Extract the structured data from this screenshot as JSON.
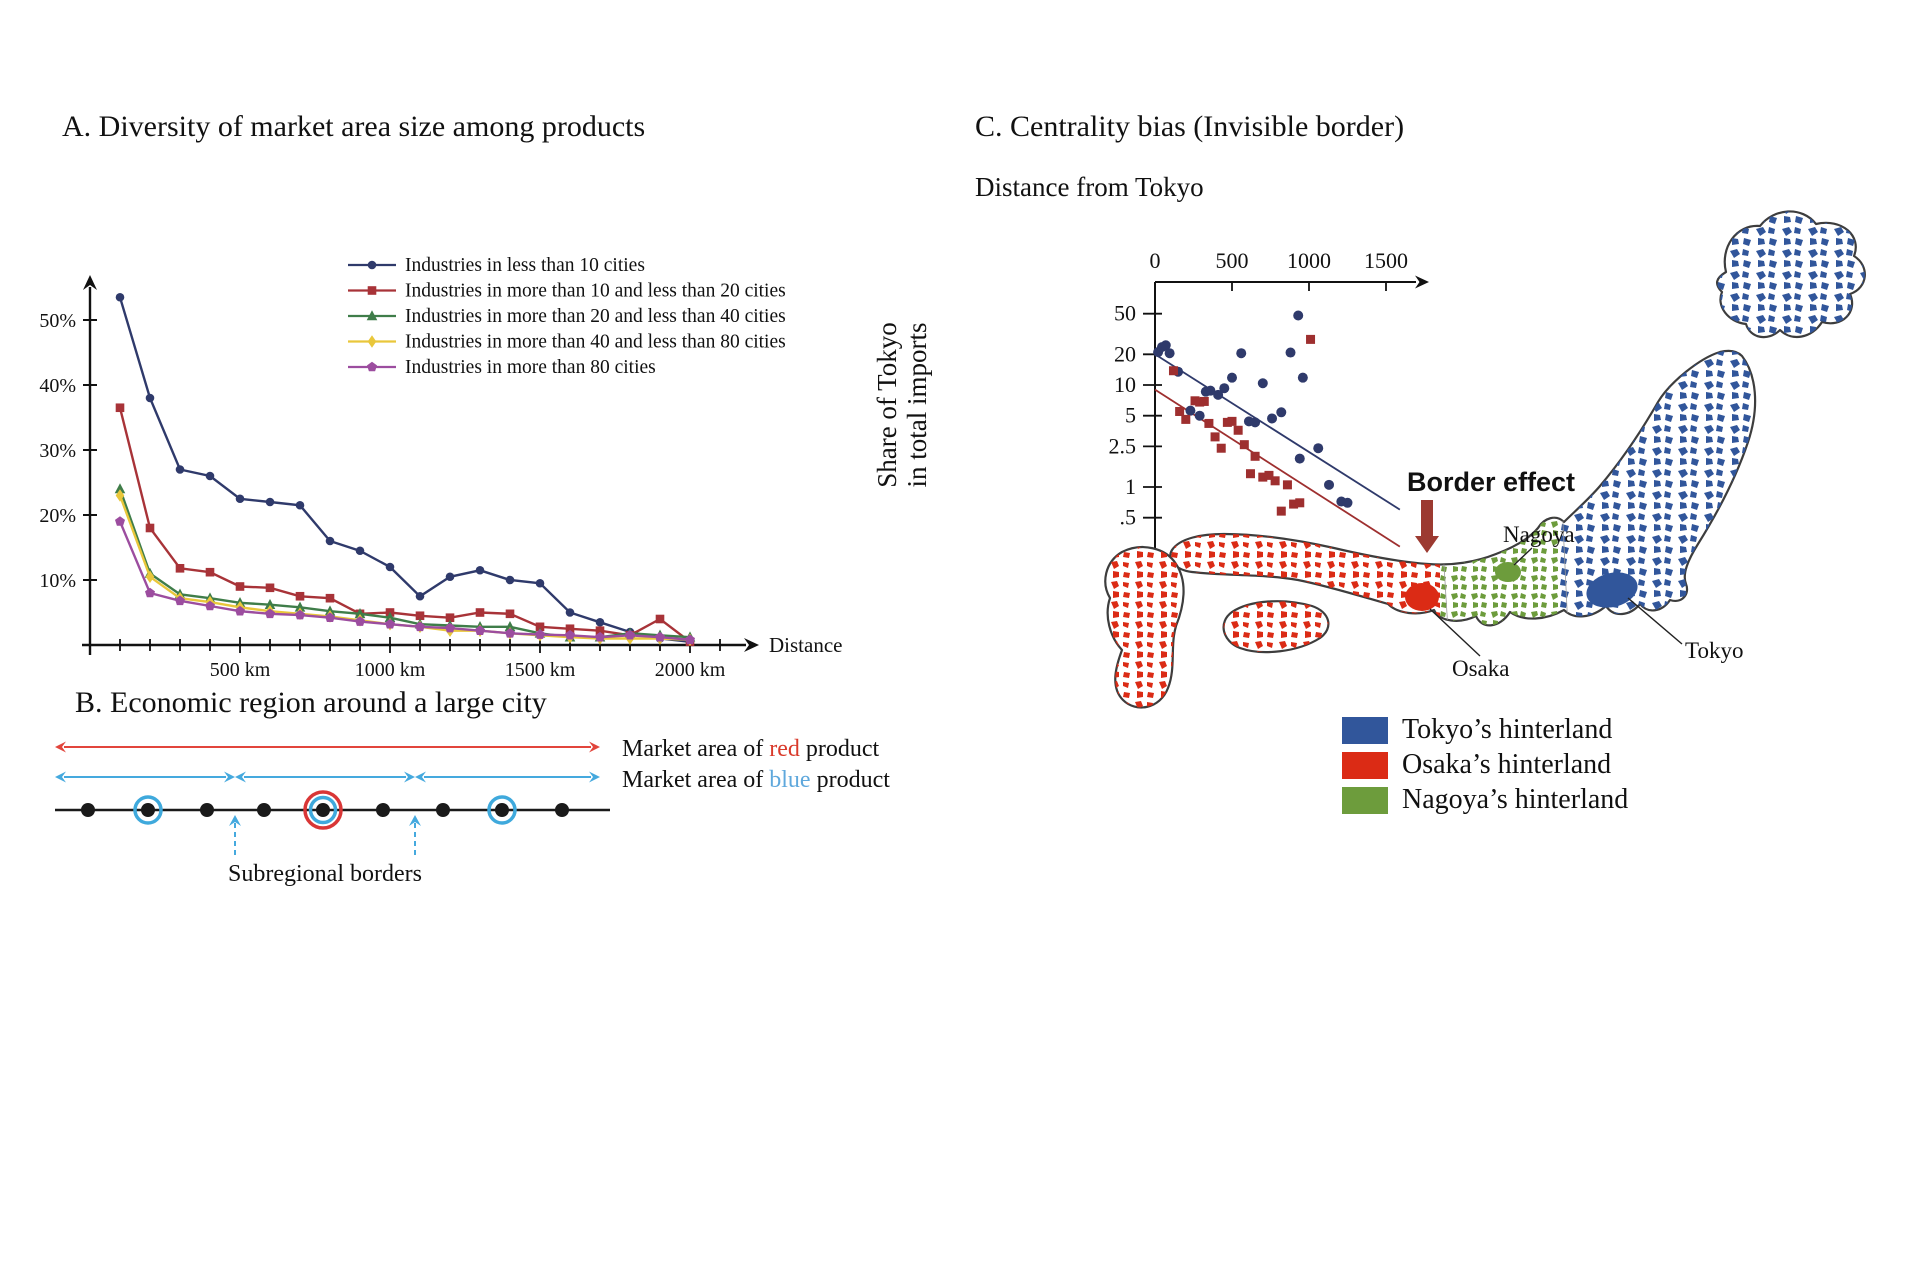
{
  "panels": {
    "a": {
      "title": "A. Diversity of market area size among products"
    },
    "b": {
      "title": "B. Economic region around a large city",
      "market_red": {
        "prefix": "Market area of ",
        "word": "red",
        "suffix": " product",
        "word_color": "#D93A2B"
      },
      "market_blue": {
        "prefix": "Market area of ",
        "word": "blue",
        "suffix": " product",
        "word_color": "#5FA8DC"
      },
      "borders_label": "Subregional borders",
      "diagram": {
        "arrow_red_color": "#E2453C",
        "arrow_blue_color": "#45A9DE",
        "ring_blue_color": "#3FA9DC",
        "ring_red_color": "#D93636",
        "span": [
          15,
          560
        ],
        "blue_breaks": [
          15,
          195,
          375,
          560
        ],
        "city_positions": [
          48,
          108,
          167,
          224,
          283,
          343,
          403,
          462,
          522
        ],
        "blue_ring_cities": [
          1,
          7
        ],
        "center_city": 4,
        "border_positions": [
          195,
          375
        ]
      }
    },
    "c": {
      "title": "C. Centrality bias (Invisible border)",
      "y_axis_label_lines": [
        "Share of Tokyo",
        "in total imports"
      ],
      "border_effect_label": "Border effect",
      "border_effect_color": "#9C3A31",
      "city_labels": {
        "tokyo": "Tokyo",
        "osaka": "Osaka",
        "nagoya": "Nagoya"
      },
      "map_legend": [
        {
          "label": "Tokyo’s hinterland",
          "color": "#31569B"
        },
        {
          "label": "Osaka’s hinterland",
          "color": "#DB2B15"
        },
        {
          "label": "Nagoya’s hinterland",
          "color": "#6D9C3C"
        }
      ]
    }
  },
  "chart_data": [
    {
      "type": "line",
      "title": "A. Diversity of market area size among products",
      "xlabel": "Distance",
      "x_unit": "km",
      "grid": false,
      "legend_position": "upper right",
      "xlim": [
        0,
        2150
      ],
      "ylim": [
        0,
        57
      ],
      "y_ticks": [
        10,
        20,
        30,
        40,
        50
      ],
      "y_tick_labels": [
        "10%",
        "20%",
        "30%",
        "40%",
        "50%"
      ],
      "x_major_ticks": [
        500,
        1000,
        1500,
        2000
      ],
      "x_major_tick_labels": [
        "500 km",
        "1000 km",
        "1500 km",
        "2000 km"
      ],
      "x": [
        100,
        200,
        300,
        400,
        500,
        600,
        700,
        800,
        900,
        1000,
        1100,
        1200,
        1300,
        1400,
        1500,
        1600,
        1700,
        1800,
        1900,
        2000
      ],
      "series": [
        {
          "name": "Industries in less than 10 cities",
          "color": "#2F3A6B",
          "marker": "circle",
          "values": [
            53.5,
            38,
            27,
            26,
            22.5,
            22,
            21.5,
            16,
            14.5,
            12,
            7.5,
            10.5,
            11.5,
            10,
            9.5,
            5,
            3.5,
            2,
            1,
            0.5
          ]
        },
        {
          "name": "Industries in more than 10 and less than 20 cities",
          "color": "#A83338",
          "marker": "square",
          "values": [
            36.5,
            18,
            11.8,
            11.2,
            9,
            8.8,
            7.5,
            7.2,
            4.8,
            5,
            4.5,
            4.2,
            5,
            4.8,
            2.8,
            2.5,
            2.2,
            1.5,
            4,
            0.5
          ]
        },
        {
          "name": "Industries in more than 20 and less than 40 cities",
          "color": "#3F7D49",
          "marker": "triangle",
          "values": [
            24,
            11,
            7.8,
            7.2,
            6.5,
            6.2,
            5.8,
            5.2,
            4.8,
            4.2,
            3.2,
            3,
            2.8,
            2.8,
            1.8,
            1.2,
            1.2,
            1.8,
            1.5,
            1.2
          ]
        },
        {
          "name": "Industries in more than 40 and less than 80 cities",
          "color": "#E9C73B",
          "marker": "diamond",
          "values": [
            23,
            10.5,
            7.2,
            6.6,
            5.8,
            5.2,
            4.8,
            4.4,
            3.8,
            3.2,
            2.8,
            2.2,
            2.2,
            1.8,
            1.5,
            1.2,
            1,
            1,
            1,
            0.8
          ]
        },
        {
          "name": "Industries in more than 80 cities",
          "color": "#9C4D9F",
          "marker": "pentagon",
          "values": [
            19,
            8,
            6.8,
            6,
            5.2,
            4.8,
            4.6,
            4.2,
            3.6,
            3.2,
            2.8,
            2.6,
            2.2,
            1.8,
            1.6,
            1.5,
            1.2,
            1.5,
            1.2,
            0.8
          ]
        }
      ]
    },
    {
      "type": "scatter",
      "title": "C. Centrality bias (Invisible border)",
      "xlabel": "Distance from Tokyo",
      "ylabel": "Share of Tokyo in total imports",
      "y_scale": "log",
      "x_ticks": [
        0,
        500,
        1000,
        1500
      ],
      "y_ticks": [
        50,
        20,
        10,
        5,
        2.5,
        1,
        0.5
      ],
      "y_tick_labels": [
        "50",
        "20",
        "10",
        "5",
        "2.5",
        "1",
        ".5"
      ],
      "series": [
        {
          "name": "blue circles",
          "marker": "circle",
          "color": "#2F3A6B",
          "points": [
            [
              20,
              21
            ],
            [
              45,
              23.5
            ],
            [
              70,
              24.5
            ],
            [
              95,
              20.5
            ],
            [
              150,
              13.5
            ],
            [
              230,
              5.6
            ],
            [
              290,
              5
            ],
            [
              330,
              8.6
            ],
            [
              360,
              8.8
            ],
            [
              410,
              8
            ],
            [
              450,
              9.3
            ],
            [
              500,
              11.8
            ],
            [
              560,
              20.5
            ],
            [
              610,
              4.4
            ],
            [
              650,
              4.3
            ],
            [
              700,
              10.4
            ],
            [
              760,
              4.7
            ],
            [
              820,
              5.4
            ],
            [
              880,
              20.8
            ],
            [
              930,
              48
            ],
            [
              960,
              11.8
            ],
            [
              940,
              1.9
            ],
            [
              1060,
              2.4
            ],
            [
              1130,
              1.05
            ],
            [
              1210,
              0.72
            ],
            [
              1250,
              0.7
            ]
          ]
        },
        {
          "name": "red squares",
          "marker": "square",
          "color": "#9E2F2F",
          "points": [
            [
              120,
              13.8
            ],
            [
              160,
              5.5
            ],
            [
              200,
              4.6
            ],
            [
              260,
              7
            ],
            [
              290,
              6.8
            ],
            [
              320,
              6.9
            ],
            [
              350,
              4.2
            ],
            [
              390,
              3.1
            ],
            [
              430,
              2.4
            ],
            [
              470,
              4.3
            ],
            [
              500,
              4.4
            ],
            [
              540,
              3.6
            ],
            [
              580,
              2.6
            ],
            [
              620,
              1.35
            ],
            [
              650,
              2
            ],
            [
              700,
              1.25
            ],
            [
              740,
              1.3
            ],
            [
              780,
              1.15
            ],
            [
              820,
              0.58
            ],
            [
              860,
              1.05
            ],
            [
              900,
              0.68
            ],
            [
              940,
              0.7
            ],
            [
              1010,
              28
            ]
          ]
        }
      ],
      "trend_lines": [
        {
          "color": "#2F3A6B",
          "from": [
            0,
            20
          ],
          "to": [
            1590,
            0.6
          ]
        },
        {
          "color": "#9E2F2F",
          "from": [
            0,
            9
          ],
          "to": [
            1590,
            0.26
          ]
        }
      ],
      "annotation": "Border effect"
    }
  ]
}
